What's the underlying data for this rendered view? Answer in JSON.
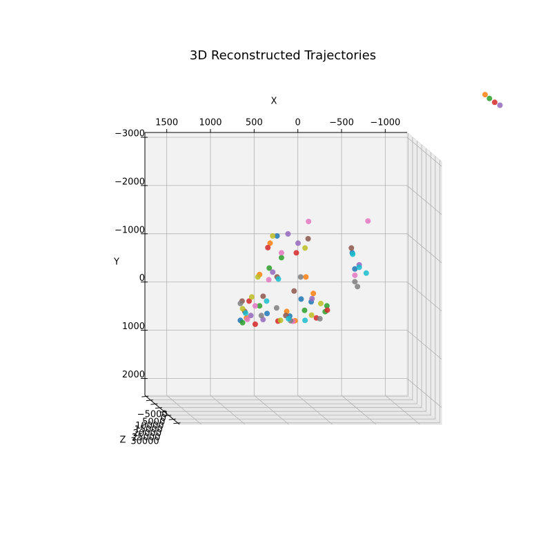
{
  "chart_data": {
    "type": "scatter3d",
    "title": "3D Reconstructed Trajectories",
    "xlabel": "X",
    "ylabel": "Y",
    "zlabel": "Z",
    "xlim": [
      1750,
      -1250
    ],
    "ylim": [
      -3100,
      2350
    ],
    "zlim": [
      -6000,
      32000
    ],
    "xticks": [
      1500,
      1000,
      500,
      0,
      {
        "value": -500,
        "label": "−500"
      },
      {
        "value": -1000,
        "label": "−1000"
      }
    ],
    "yticks": [
      {
        "value": -3000,
        "label": "−3000"
      },
      {
        "value": -2000,
        "label": "−2000"
      },
      {
        "value": -1000,
        "label": "−1000"
      },
      0,
      1000,
      2000
    ],
    "zticks": [
      {
        "value": -5000,
        "label": "−5000"
      },
      0,
      5000,
      10000,
      15000,
      20000,
      25000,
      30000
    ],
    "grid": true,
    "series": [
      {
        "color": "#1f77b4",
        "x": [
          720,
          420,
          150,
          -80,
          -560,
          -600,
          300,
          30
        ],
        "y": [
          700,
          550,
          620,
          300,
          -700,
          -350,
          -1050,
          250
        ],
        "z": [
          0,
          500,
          -500,
          1000,
          0,
          -1000,
          0,
          500
        ]
      },
      {
        "color": "#ff7f0e",
        "x": [
          650,
          380,
          100,
          -30,
          -120,
          -2080,
          200,
          500
        ],
        "y": [
          650,
          -900,
          700,
          -200,
          150,
          -3980,
          500,
          -250
        ],
        "z": [
          0,
          0,
          500,
          0,
          -500,
          0,
          1000,
          0
        ]
      },
      {
        "color": "#2ca02c",
        "x": [
          700,
          500,
          250,
          -20,
          -270,
          -2130,
          -250,
          400
        ],
        "y": [
          740,
          400,
          -600,
          500,
          400,
          -3900,
          520,
          -400
        ],
        "z": [
          500,
          0,
          0,
          -500,
          0,
          0,
          0,
          1000
        ]
      },
      {
        "color": "#d62728",
        "x": [
          550,
          300,
          80,
          -150,
          -270,
          -2190,
          400,
          620
        ],
        "y": [
          780,
          700,
          -700,
          650,
          480,
          -3820,
          -800,
          300
        ],
        "z": [
          0,
          1000,
          0,
          0,
          500,
          0,
          -500,
          0
        ]
      },
      {
        "color": "#9467bd",
        "x": [
          600,
          350,
          180,
          -100,
          -640,
          -2250,
          450,
          60
        ],
        "y": [
          600,
          -300,
          -1100,
          250,
          -450,
          -3760,
          700,
          -900
        ],
        "z": [
          0,
          0,
          500,
          0,
          0,
          0,
          -1000,
          0
        ]
      },
      {
        "color": "#8c564b",
        "x": [
          680,
          460,
          200,
          -50,
          -550,
          700,
          300,
          100
        ],
        "y": [
          500,
          200,
          600,
          -1000,
          -800,
          300,
          -200,
          100
        ],
        "z": [
          1000,
          0,
          0,
          500,
          0,
          0,
          0,
          -500
        ]
      },
      {
        "color": "#e377c2",
        "x": [
          640,
          400,
          120,
          -60,
          -740,
          -580,
          250,
          550
        ],
        "y": [
          680,
          -150,
          720,
          -1350,
          -1360,
          -250,
          -700,
          400
        ],
        "z": [
          0,
          500,
          0,
          0,
          0,
          1000,
          0,
          0
        ]
      },
      {
        "color": "#7f7f7f",
        "x": [
          720,
          480,
          300,
          30,
          -180,
          -590,
          -620,
          150
        ],
        "y": [
          350,
          600,
          450,
          -200,
          650,
          -100,
          0,
          700
        ],
        "z": [
          0,
          0,
          -500,
          0,
          1000,
          0,
          0,
          500
        ]
      },
      {
        "color": "#bcbd22",
        "x": [
          700,
          520,
          260,
          -20,
          -100,
          350,
          600,
          -200
        ],
        "y": [
          450,
          -200,
          700,
          -800,
          600,
          -1050,
          200,
          350
        ],
        "z": [
          500,
          0,
          0,
          0,
          -500,
          0,
          1000,
          0
        ]
      },
      {
        "color": "#17becf",
        "x": [
          660,
          420,
          180,
          -20,
          -560,
          -640,
          -720,
          280
        ],
        "y": [
          550,
          300,
          650,
          700,
          -680,
          -400,
          -280,
          -150
        ],
        "z": [
          0,
          0,
          1000,
          0,
          500,
          0,
          0,
          -500
        ]
      }
    ]
  }
}
